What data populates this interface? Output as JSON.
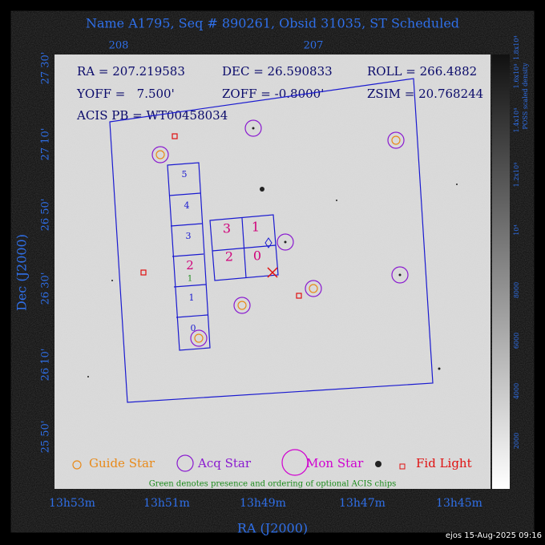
{
  "header": {
    "title": "Name A1795, Seq # 890261, Obsid 31035, ST Scheduled"
  },
  "top_axis": {
    "labels": [
      "208",
      "207"
    ]
  },
  "left_axis": {
    "title": "Dec (J2000)",
    "labels": [
      "27 30'",
      "27 10'",
      "26 50'",
      "26 30'",
      "26 10'",
      "25 50'"
    ]
  },
  "bottom_axis": {
    "title": "RA (J2000)",
    "labels": [
      "13h53m",
      "13h51m",
      "13h49m",
      "13h47m",
      "13h45m"
    ]
  },
  "colorbar": {
    "title": "POSS scaled density",
    "labels": [
      "2000",
      "4000",
      "6000",
      "8000",
      "10⁴",
      "1.2x10⁴",
      "1.4x10⁴",
      "1.6x10⁴",
      "1.8x10⁴"
    ]
  },
  "info": {
    "ra": "RA = 207.219583",
    "dec": "DEC = 26.590833",
    "roll": "ROLL = 266.4882",
    "yoff": "YOFF =   7.500'",
    "zoff": "ZOFF = -0.8000'",
    "zsim": "ZSIM = 20.768244",
    "acis": "ACIS PB = WT00458034"
  },
  "acis_s": {
    "labels": [
      "5",
      "4",
      "3",
      "2",
      "1",
      "0"
    ],
    "optional": "1"
  },
  "acis_i": {
    "labels": [
      "3",
      "1",
      "2",
      "0"
    ]
  },
  "legend": {
    "items": [
      "Guide Star",
      "Acq Star",
      "Mon Star",
      "Fid Light"
    ],
    "note": "Green denotes presence and ordering of optional ACIS chips"
  },
  "footer": {
    "stamp": "ejos 15-Aug-2025 09:16"
  }
}
